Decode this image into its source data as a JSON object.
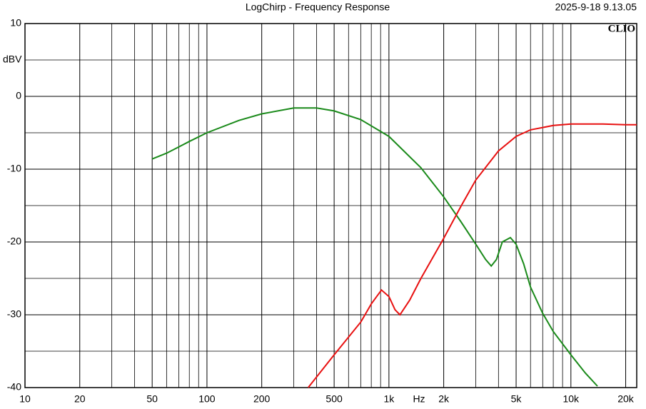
{
  "chart_data": {
    "type": "line",
    "title": "LogChirp - Frequency Response",
    "timestamp": "2025-9-18 9.13.05",
    "brand": "CLIO",
    "ylabel": "dBV",
    "xlabel": "Hz",
    "x_log": true,
    "xlim": [
      10,
      23000
    ],
    "ylim": [
      -40,
      10
    ],
    "yticks": [
      -40,
      -30,
      -20,
      -10,
      0,
      10
    ],
    "y_minor_ticks": [
      -35,
      -25,
      -15,
      -5,
      5
    ],
    "xticks": [
      10,
      20,
      50,
      100,
      200,
      500,
      {
        "value": 1000,
        "label": "1k"
      },
      {
        "value": 2000,
        "label": "2k"
      },
      {
        "value": 5000,
        "label": "5k"
      },
      {
        "value": 10000,
        "label": "10k"
      },
      {
        "value": 20000,
        "label": "20k"
      }
    ],
    "x_minor_ticks": [
      30,
      40,
      60,
      70,
      80,
      90,
      300,
      400,
      600,
      700,
      800,
      900,
      3000,
      4000,
      6000,
      7000,
      8000,
      9000
    ],
    "series": [
      {
        "color": "#1a8a1a",
        "x": [
          50,
          60,
          80,
          100,
          150,
          200,
          300,
          400,
          500,
          700,
          1000,
          1500,
          2000,
          2500,
          3000,
          3400,
          3650,
          3900,
          4200,
          4650,
          5000,
          5500,
          6000,
          7000,
          8000,
          10000,
          12000,
          14000
        ],
        "values": [
          -8.6,
          -7.8,
          -6.2,
          -5.0,
          -3.3,
          -2.4,
          -1.6,
          -1.6,
          -2.0,
          -3.2,
          -5.5,
          -9.8,
          -13.8,
          -17.3,
          -20.3,
          -22.4,
          -23.3,
          -22.4,
          -20.0,
          -19.4,
          -20.3,
          -23.0,
          -26.2,
          -29.8,
          -32.3,
          -35.5,
          -38.0,
          -39.8
        ]
      },
      {
        "color": "#e81010",
        "x": [
          360,
          500,
          700,
          800,
          910,
          1000,
          1080,
          1150,
          1300,
          1500,
          2000,
          2500,
          3000,
          4000,
          5000,
          6000,
          8000,
          10000,
          15000,
          20000,
          23000
        ],
        "values": [
          -40,
          -35.5,
          -31,
          -28.5,
          -26.6,
          -27.5,
          -29.3,
          -30.0,
          -28.0,
          -25.0,
          -19.5,
          -15.0,
          -11.5,
          -7.5,
          -5.5,
          -4.6,
          -4.0,
          -3.8,
          -3.8,
          -3.9,
          -3.9
        ]
      }
    ]
  }
}
